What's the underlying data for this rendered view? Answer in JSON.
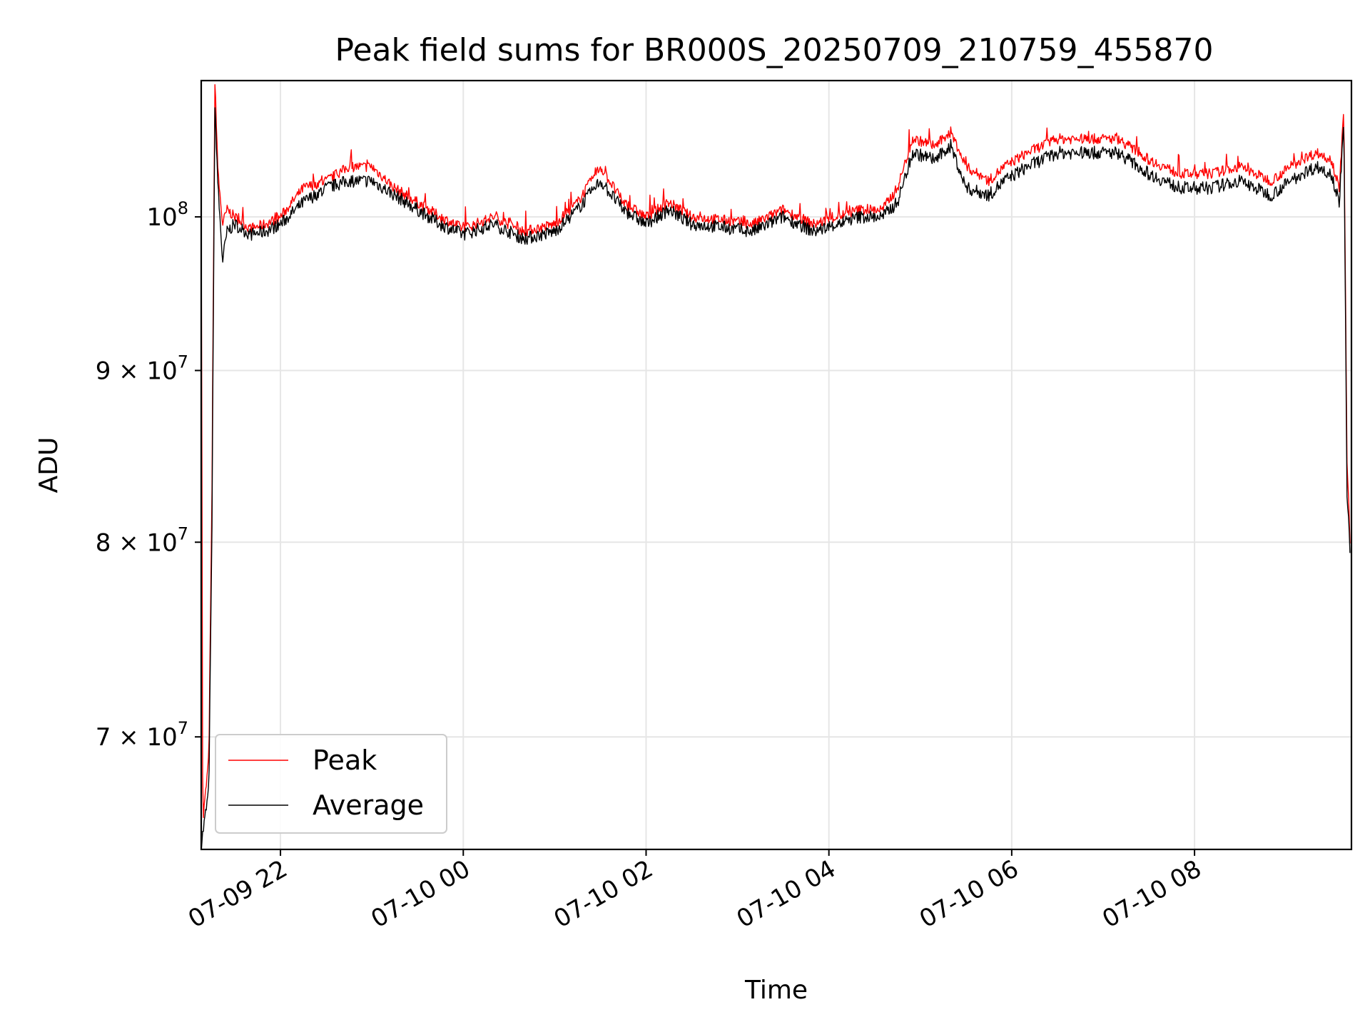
{
  "chart_data": {
    "type": "line",
    "title": "Peak field sums for BR000S_20250709_210759_455870",
    "xlabel": "Time",
    "ylabel": "ADU",
    "x_tick_labels": [
      "07-09 22",
      "07-10 00",
      "07-10 02",
      "07-10 04",
      "07-10 06",
      "07-10 08"
    ],
    "y_tick_labels": [
      {
        "value": 70000000,
        "mantissa": "7",
        "exponent": "7"
      },
      {
        "value": 80000000,
        "mantissa": "8",
        "exponent": "7"
      },
      {
        "value": 90000000,
        "mantissa": "9",
        "exponent": "7"
      },
      {
        "value": 100000000,
        "mantissa": "",
        "exponent": "8"
      }
    ],
    "y_scale": "log",
    "ylim": [
      64800000,
      109800000
    ],
    "xlim": [
      "2025-07-09 21:07:59",
      "2025-07-10 09:43:00"
    ],
    "grid": true,
    "legend_position": "lower-left",
    "series": [
      {
        "name": "Peak",
        "color": "#ff0000",
        "x": [
          "2025-07-09 21:08",
          "2025-07-09 21:09",
          "2025-07-09 21:11",
          "2025-07-09 21:13",
          "2025-07-09 21:15",
          "2025-07-09 21:17",
          "2025-07-09 21:19",
          "2025-07-09 21:22",
          "2025-07-09 21:25",
          "2025-07-09 21:30",
          "2025-07-09 21:40",
          "2025-07-09 21:50",
          "2025-07-09 22:00",
          "2025-07-09 22:15",
          "2025-07-09 22:30",
          "2025-07-09 22:45",
          "2025-07-09 23:00",
          "2025-07-09 23:15",
          "2025-07-09 23:30",
          "2025-07-09 23:45",
          "2025-07-10 00:00",
          "2025-07-10 00:20",
          "2025-07-10 00:40",
          "2025-07-10 01:00",
          "2025-07-10 01:15",
          "2025-07-10 01:30",
          "2025-07-10 01:45",
          "2025-07-10 02:00",
          "2025-07-10 02:15",
          "2025-07-10 02:30",
          "2025-07-10 02:50",
          "2025-07-10 03:10",
          "2025-07-10 03:30",
          "2025-07-10 03:50",
          "2025-07-10 04:05",
          "2025-07-10 04:20",
          "2025-07-10 04:35",
          "2025-07-10 04:45",
          "2025-07-10 04:55",
          "2025-07-10 05:10",
          "2025-07-10 05:20",
          "2025-07-10 05:30",
          "2025-07-10 05:45",
          "2025-07-10 05:55",
          "2025-07-10 06:10",
          "2025-07-10 06:30",
          "2025-07-10 06:50",
          "2025-07-10 07:10",
          "2025-07-10 07:30",
          "2025-07-10 07:50",
          "2025-07-10 08:10",
          "2025-07-10 08:30",
          "2025-07-10 08:50",
          "2025-07-10 09:10",
          "2025-07-10 09:20",
          "2025-07-10 09:30",
          "2025-07-10 09:35",
          "2025-07-10 09:38",
          "2025-07-10 09:40",
          "2025-07-10 09:42"
        ],
        "values": [
          100500000,
          66000000,
          67500000,
          69000000,
          82000000,
          109800000,
          103000000,
          99500000,
          100500000,
          100000000,
          99200000,
          99500000,
          100000000,
          102000000,
          102500000,
          103500000,
          103500000,
          102000000,
          101000000,
          100000000,
          99200000,
          100000000,
          99000000,
          99500000,
          101000000,
          103500000,
          101000000,
          100000000,
          101000000,
          100000000,
          99800000,
          99500000,
          100500000,
          99500000,
          100000000,
          100500000,
          100500000,
          102000000,
          105500000,
          105000000,
          106000000,
          103500000,
          102500000,
          103500000,
          104500000,
          105500000,
          105500000,
          105500000,
          104000000,
          103000000,
          103000000,
          103500000,
          102500000,
          104000000,
          104500000,
          104000000,
          102000000,
          107500000,
          85000000,
          80000000
        ]
      },
      {
        "name": "Average",
        "color": "#000000",
        "x": [
          "2025-07-09 21:08",
          "2025-07-09 21:09",
          "2025-07-09 21:11",
          "2025-07-09 21:13",
          "2025-07-09 21:15",
          "2025-07-09 21:17",
          "2025-07-09 21:19",
          "2025-07-09 21:22",
          "2025-07-09 21:25",
          "2025-07-09 21:30",
          "2025-07-09 21:40",
          "2025-07-09 21:50",
          "2025-07-09 22:00",
          "2025-07-09 22:15",
          "2025-07-09 22:30",
          "2025-07-09 22:45",
          "2025-07-09 23:00",
          "2025-07-09 23:15",
          "2025-07-09 23:30",
          "2025-07-09 23:45",
          "2025-07-10 00:00",
          "2025-07-10 00:20",
          "2025-07-10 00:40",
          "2025-07-10 01:00",
          "2025-07-10 01:15",
          "2025-07-10 01:30",
          "2025-07-10 01:45",
          "2025-07-10 02:00",
          "2025-07-10 02:15",
          "2025-07-10 02:30",
          "2025-07-10 02:50",
          "2025-07-10 03:10",
          "2025-07-10 03:30",
          "2025-07-10 03:50",
          "2025-07-10 04:05",
          "2025-07-10 04:20",
          "2025-07-10 04:35",
          "2025-07-10 04:45",
          "2025-07-10 04:55",
          "2025-07-10 05:10",
          "2025-07-10 05:20",
          "2025-07-10 05:30",
          "2025-07-10 05:45",
          "2025-07-10 05:55",
          "2025-07-10 06:10",
          "2025-07-10 06:30",
          "2025-07-10 06:50",
          "2025-07-10 07:10",
          "2025-07-10 07:30",
          "2025-07-10 07:50",
          "2025-07-10 08:10",
          "2025-07-10 08:30",
          "2025-07-10 08:50",
          "2025-07-10 09:10",
          "2025-07-10 09:20",
          "2025-07-10 09:30",
          "2025-07-10 09:35",
          "2025-07-10 09:38",
          "2025-07-10 09:40",
          "2025-07-10 09:42"
        ],
        "values": [
          65000000,
          65500000,
          66500000,
          67500000,
          80000000,
          108000000,
          102000000,
          97000000,
          99000000,
          99500000,
          98800000,
          99000000,
          99500000,
          101000000,
          102000000,
          102500000,
          102500000,
          101500000,
          100500000,
          99500000,
          98800000,
          99500000,
          98500000,
          99000000,
          100500000,
          102500000,
          100500000,
          99500000,
          100500000,
          99500000,
          99300000,
          99000000,
          100000000,
          99000000,
          99500000,
          100000000,
          100000000,
          101000000,
          104500000,
          104000000,
          105000000,
          102000000,
          101500000,
          102500000,
          103500000,
          104500000,
          104500000,
          104500000,
          103000000,
          102000000,
          102000000,
          102500000,
          101500000,
          103000000,
          103500000,
          103000000,
          101000000,
          106500000,
          83000000,
          79500000
        ]
      }
    ]
  }
}
